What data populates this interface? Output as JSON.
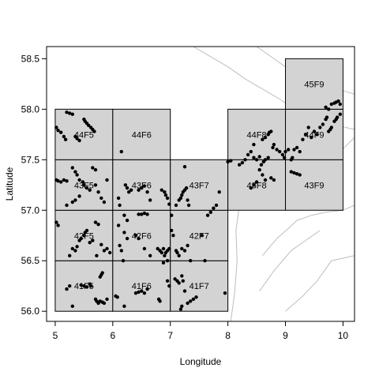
{
  "chart_data": {
    "type": "scatter",
    "xlabel": "Longitude",
    "ylabel": "Latitude",
    "xlim": [
      4.85,
      10.2
    ],
    "ylim": [
      55.9,
      58.62
    ],
    "x_ticks": [
      5,
      6,
      7,
      8,
      9,
      10
    ],
    "y_ticks": [
      56.0,
      56.5,
      57.0,
      57.5,
      58.0,
      58.5
    ],
    "x_tick_labels": [
      "5",
      "6",
      "7",
      "8",
      "9",
      "10"
    ],
    "y_tick_labels": [
      "56.0",
      "56.5",
      "57.0",
      "57.5",
      "58.0",
      "58.5"
    ],
    "grid": false,
    "colors": {
      "cell_fill": "#d3d3d3",
      "cell_border": "#000000",
      "coastline": "#bebebe",
      "points": "#000000"
    },
    "rectangles": [
      {
        "name": "41F5",
        "lon": [
          5,
          6
        ],
        "lat": [
          56.0,
          56.5
        ]
      },
      {
        "name": "41F6",
        "lon": [
          6,
          7
        ],
        "lat": [
          56.0,
          56.5
        ]
      },
      {
        "name": "41F7",
        "lon": [
          7,
          8
        ],
        "lat": [
          56.0,
          56.5
        ]
      },
      {
        "name": "42F5",
        "lon": [
          5,
          6
        ],
        "lat": [
          56.5,
          57.0
        ]
      },
      {
        "name": "42F6",
        "lon": [
          6,
          7
        ],
        "lat": [
          56.5,
          57.0
        ]
      },
      {
        "name": "42F7",
        "lon": [
          7,
          8
        ],
        "lat": [
          56.5,
          57.0
        ]
      },
      {
        "name": "43F5",
        "lon": [
          5,
          6
        ],
        "lat": [
          57.0,
          57.5
        ]
      },
      {
        "name": "43F6",
        "lon": [
          6,
          7
        ],
        "lat": [
          57.0,
          57.5
        ]
      },
      {
        "name": "43F7",
        "lon": [
          7,
          8
        ],
        "lat": [
          57.0,
          57.5
        ]
      },
      {
        "name": "43F8",
        "lon": [
          8,
          9
        ],
        "lat": [
          57.0,
          57.5
        ]
      },
      {
        "name": "43F9",
        "lon": [
          9,
          10
        ],
        "lat": [
          57.0,
          57.5
        ]
      },
      {
        "name": "44F5",
        "lon": [
          5,
          6
        ],
        "lat": [
          57.5,
          58.0
        ]
      },
      {
        "name": "44F6",
        "lon": [
          6,
          7
        ],
        "lat": [
          57.5,
          58.0
        ]
      },
      {
        "name": "44F8",
        "lon": [
          8,
          9
        ],
        "lat": [
          57.5,
          58.0
        ]
      },
      {
        "name": "44F9",
        "lon": [
          9,
          10
        ],
        "lat": [
          57.5,
          58.0
        ]
      },
      {
        "name": "45F9",
        "lon": [
          9,
          10
        ],
        "lat": [
          58.0,
          58.5
        ]
      }
    ],
    "coastline": [
      [
        [
          7.4,
          58.62
        ],
        [
          7.7,
          58.52
        ],
        [
          8.0,
          58.42
        ],
        [
          8.3,
          58.3
        ],
        [
          8.6,
          58.2
        ],
        [
          8.9,
          58.1
        ],
        [
          9.2,
          57.98
        ],
        [
          9.5,
          57.92
        ],
        [
          9.8,
          57.85
        ],
        [
          10.2,
          57.8
        ]
      ],
      [
        [
          8.5,
          58.62
        ],
        [
          8.8,
          58.5
        ],
        [
          9.1,
          58.38
        ],
        [
          9.5,
          58.28
        ],
        [
          9.9,
          58.2
        ],
        [
          10.2,
          58.15
        ]
      ],
      [
        [
          8.05,
          55.9
        ],
        [
          8.12,
          56.2
        ],
        [
          8.16,
          56.5
        ],
        [
          8.14,
          56.8
        ],
        [
          8.2,
          57.05
        ],
        [
          8.45,
          57.15
        ],
        [
          8.75,
          57.12
        ],
        [
          9.05,
          57.15
        ],
        [
          9.3,
          57.32
        ],
        [
          9.6,
          57.45
        ],
        [
          9.95,
          57.58
        ],
        [
          10.2,
          57.72
        ]
      ],
      [
        [
          8.6,
          56.55
        ],
        [
          8.85,
          56.72
        ],
        [
          9.05,
          56.82
        ],
        [
          9.2,
          56.9
        ],
        [
          9.45,
          56.95
        ],
        [
          9.7,
          56.98
        ],
        [
          10.0,
          57.0
        ],
        [
          10.2,
          57.05
        ]
      ],
      [
        [
          8.55,
          56.2
        ],
        [
          8.8,
          56.4
        ],
        [
          9.1,
          56.6
        ],
        [
          9.35,
          56.7
        ],
        [
          9.6,
          56.8
        ]
      ],
      [
        [
          9.0,
          56.0
        ],
        [
          9.3,
          56.15
        ],
        [
          9.55,
          56.3
        ],
        [
          9.8,
          56.5
        ],
        [
          10.2,
          56.55
        ]
      ]
    ],
    "points": [
      [
        5.02,
        57.82
      ],
      [
        5.05,
        57.79
      ],
      [
        5.1,
        57.77
      ],
      [
        5.15,
        57.73
      ],
      [
        5.18,
        57.7
      ],
      [
        5.2,
        57.97
      ],
      [
        5.25,
        57.96
      ],
      [
        5.3,
        57.95
      ],
      [
        5.35,
        57.73
      ],
      [
        5.38,
        57.71
      ],
      [
        5.42,
        57.69
      ],
      [
        5.5,
        57.9
      ],
      [
        5.52,
        57.88
      ],
      [
        5.55,
        57.86
      ],
      [
        5.58,
        57.84
      ],
      [
        5.62,
        57.82
      ],
      [
        5.65,
        57.8
      ],
      [
        5.68,
        57.78
      ],
      [
        5.02,
        57.3
      ],
      [
        5.05,
        57.29
      ],
      [
        5.1,
        57.28
      ],
      [
        5.15,
        57.3
      ],
      [
        5.2,
        57.29
      ],
      [
        5.3,
        57.42
      ],
      [
        5.35,
        57.38
      ],
      [
        5.38,
        57.35
      ],
      [
        5.42,
        57.3
      ],
      [
        5.48,
        57.28
      ],
      [
        5.5,
        57.25
      ],
      [
        5.55,
        57.22
      ],
      [
        5.2,
        57.05
      ],
      [
        5.3,
        57.08
      ],
      [
        5.35,
        57.1
      ],
      [
        5.42,
        57.14
      ],
      [
        5.6,
        57.2
      ],
      [
        5.7,
        57.25
      ],
      [
        5.75,
        57.18
      ],
      [
        5.8,
        57.12
      ],
      [
        5.85,
        57.08
      ],
      [
        5.65,
        57.42
      ],
      [
        5.7,
        57.4
      ],
      [
        5.9,
        57.3
      ],
      [
        5.02,
        56.88
      ],
      [
        5.05,
        56.85
      ],
      [
        5.3,
        56.62
      ],
      [
        5.35,
        56.6
      ],
      [
        5.38,
        56.64
      ],
      [
        5.42,
        56.7
      ],
      [
        5.45,
        56.72
      ],
      [
        5.5,
        56.75
      ],
      [
        5.52,
        56.78
      ],
      [
        5.55,
        56.8
      ],
      [
        5.25,
        56.55
      ],
      [
        5.6,
        56.68
      ],
      [
        5.65,
        56.7
      ],
      [
        5.7,
        56.88
      ],
      [
        5.75,
        56.86
      ],
      [
        5.8,
        56.66
      ],
      [
        5.85,
        56.6
      ],
      [
        5.9,
        56.62
      ],
      [
        5.95,
        56.58
      ],
      [
        5.72,
        56.55
      ],
      [
        5.2,
        56.22
      ],
      [
        5.25,
        56.25
      ],
      [
        5.3,
        56.05
      ],
      [
        5.45,
        56.26
      ],
      [
        5.5,
        56.25
      ],
      [
        5.55,
        56.24
      ],
      [
        5.6,
        56.27
      ],
      [
        5.62,
        56.25
      ],
      [
        5.7,
        56.12
      ],
      [
        5.72,
        56.1
      ],
      [
        5.75,
        56.08
      ],
      [
        5.78,
        56.1
      ],
      [
        5.82,
        56.09
      ],
      [
        5.85,
        56.08
      ],
      [
        5.9,
        56.12
      ],
      [
        5.78,
        56.34
      ],
      [
        5.8,
        56.36
      ],
      [
        5.82,
        56.38
      ],
      [
        6.15,
        57.58
      ],
      [
        6.22,
        57.25
      ],
      [
        6.25,
        57.22
      ],
      [
        6.28,
        57.18
      ],
      [
        6.32,
        57.2
      ],
      [
        6.45,
        57.2
      ],
      [
        6.5,
        57.22
      ],
      [
        6.55,
        57.24
      ],
      [
        6.6,
        57.18
      ],
      [
        6.1,
        57.12
      ],
      [
        6.12,
        57.05
      ],
      [
        6.2,
        56.95
      ],
      [
        6.25,
        56.9
      ],
      [
        6.45,
        56.96
      ],
      [
        6.5,
        56.96
      ],
      [
        6.55,
        56.97
      ],
      [
        6.6,
        56.96
      ],
      [
        6.65,
        57.1
      ],
      [
        6.85,
        57.2
      ],
      [
        6.9,
        57.18
      ],
      [
        6.92,
        57.15
      ],
      [
        6.95,
        57.12
      ],
      [
        6.98,
        57.06
      ],
      [
        6.1,
        56.85
      ],
      [
        6.2,
        56.78
      ],
      [
        6.25,
        56.72
      ],
      [
        6.12,
        56.65
      ],
      [
        6.15,
        56.6
      ],
      [
        6.18,
        56.5
      ],
      [
        6.4,
        56.75
      ],
      [
        6.45,
        56.72
      ],
      [
        6.55,
        56.62
      ],
      [
        6.65,
        56.55
      ],
      [
        6.78,
        56.62
      ],
      [
        6.82,
        56.6
      ],
      [
        6.85,
        56.58
      ],
      [
        6.88,
        56.62
      ],
      [
        6.9,
        56.55
      ],
      [
        6.92,
        56.58
      ],
      [
        6.95,
        56.6
      ],
      [
        6.98,
        56.62
      ],
      [
        6.95,
        56.5
      ],
      [
        6.88,
        56.48
      ],
      [
        6.05,
        56.15
      ],
      [
        6.08,
        56.14
      ],
      [
        6.2,
        56.05
      ],
      [
        6.4,
        56.18
      ],
      [
        6.45,
        56.19
      ],
      [
        6.5,
        56.2
      ],
      [
        6.55,
        56.18
      ],
      [
        6.6,
        56.22
      ],
      [
        6.8,
        56.12
      ],
      [
        6.82,
        56.1
      ],
      [
        6.95,
        56.3
      ],
      [
        6.98,
        56.25
      ],
      [
        7.02,
        56.95
      ],
      [
        7.1,
        57.05
      ],
      [
        7.15,
        57.1
      ],
      [
        7.18,
        57.12
      ],
      [
        7.2,
        57.15
      ],
      [
        7.22,
        57.18
      ],
      [
        7.25,
        57.2
      ],
      [
        7.28,
        57.22
      ],
      [
        7.3,
        57.1
      ],
      [
        7.32,
        57.05
      ],
      [
        7.25,
        57.43
      ],
      [
        7.65,
        56.95
      ],
      [
        7.7,
        56.98
      ],
      [
        7.75,
        57.02
      ],
      [
        7.8,
        57.05
      ],
      [
        7.85,
        57.18
      ],
      [
        7.02,
        56.8
      ],
      [
        7.05,
        56.75
      ],
      [
        7.1,
        56.6
      ],
      [
        7.12,
        56.58
      ],
      [
        7.15,
        56.55
      ],
      [
        7.2,
        56.62
      ],
      [
        7.25,
        56.6
      ],
      [
        7.3,
        56.65
      ],
      [
        7.35,
        56.5
      ],
      [
        7.55,
        56.75
      ],
      [
        7.6,
        56.5
      ],
      [
        7.08,
        56.32
      ],
      [
        7.12,
        56.3
      ],
      [
        7.15,
        56.28
      ],
      [
        7.2,
        56.35
      ],
      [
        7.22,
        56.3
      ],
      [
        7.18,
        56.02
      ],
      [
        7.2,
        56.05
      ],
      [
        7.25,
        56.2
      ],
      [
        7.3,
        56.08
      ],
      [
        7.35,
        56.1
      ],
      [
        7.4,
        56.12
      ],
      [
        7.45,
        56.14
      ],
      [
        7.95,
        56.18
      ],
      [
        8.0,
        57.48
      ],
      [
        8.05,
        57.49
      ],
      [
        8.2,
        57.45
      ],
      [
        8.25,
        57.47
      ],
      [
        8.3,
        57.5
      ],
      [
        8.35,
        57.55
      ],
      [
        8.4,
        57.58
      ],
      [
        8.45,
        57.52
      ],
      [
        8.5,
        57.5
      ],
      [
        8.55,
        57.53
      ],
      [
        8.58,
        57.45
      ],
      [
        8.62,
        57.48
      ],
      [
        8.65,
        57.5
      ],
      [
        8.7,
        57.52
      ],
      [
        8.55,
        57.4
      ],
      [
        8.6,
        57.35
      ],
      [
        8.65,
        57.3
      ],
      [
        8.75,
        57.32
      ],
      [
        8.8,
        57.3
      ],
      [
        8.5,
        57.28
      ],
      [
        8.45,
        57.25
      ],
      [
        8.4,
        57.22
      ],
      [
        8.45,
        57.65
      ],
      [
        8.6,
        57.7
      ],
      [
        8.65,
        57.72
      ],
      [
        8.7,
        57.75
      ],
      [
        8.72,
        57.77
      ],
      [
        8.75,
        57.78
      ],
      [
        8.78,
        57.62
      ],
      [
        8.8,
        57.65
      ],
      [
        8.85,
        57.6
      ],
      [
        8.9,
        57.58
      ],
      [
        8.95,
        57.55
      ],
      [
        8.98,
        57.52
      ],
      [
        9.0,
        57.58
      ],
      [
        9.05,
        57.6
      ],
      [
        9.1,
        57.5
      ],
      [
        9.12,
        57.52
      ],
      [
        9.15,
        57.6
      ],
      [
        9.2,
        57.62
      ],
      [
        9.25,
        57.58
      ],
      [
        9.1,
        57.38
      ],
      [
        9.15,
        57.37
      ],
      [
        9.2,
        57.36
      ],
      [
        9.25,
        57.35
      ],
      [
        9.3,
        57.7
      ],
      [
        9.35,
        57.75
      ],
      [
        9.4,
        57.82
      ],
      [
        9.45,
        57.72
      ],
      [
        9.5,
        57.78
      ],
      [
        9.55,
        57.75
      ],
      [
        9.6,
        57.82
      ],
      [
        9.65,
        57.85
      ],
      [
        9.7,
        57.9
      ],
      [
        9.72,
        57.92
      ],
      [
        9.75,
        57.78
      ],
      [
        9.78,
        57.8
      ],
      [
        9.8,
        57.82
      ],
      [
        9.85,
        57.88
      ],
      [
        9.88,
        57.9
      ],
      [
        9.9,
        57.92
      ],
      [
        9.95,
        57.95
      ],
      [
        9.8,
        58.05
      ],
      [
        9.85,
        58.06
      ],
      [
        9.88,
        58.07
      ],
      [
        9.92,
        58.08
      ],
      [
        9.95,
        58.05
      ],
      [
        9.75,
        58.0
      ],
      [
        9.7,
        58.02
      ]
    ]
  }
}
